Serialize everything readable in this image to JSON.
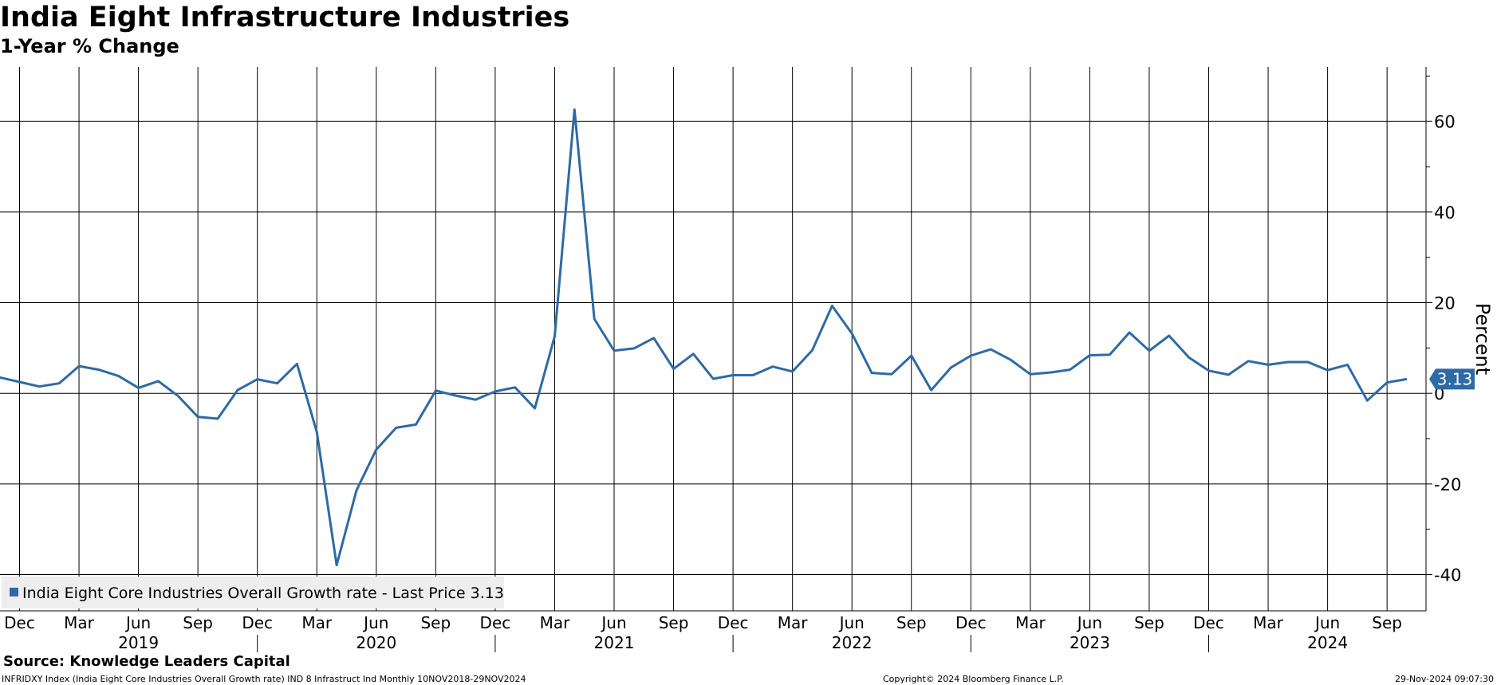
{
  "title": "India Eight Infrastructure Industries",
  "subtitle": "1-Year % Change",
  "source": "Source: Knowledge Leaders Capital",
  "footer": {
    "left": "INFRIDXY Index (India Eight Core Industries Overall Growth rate) IND 8 Infrastruct Ind  Monthly 10NOV2018-29NOV2024",
    "middle": "Copyright© 2024 Bloomberg Finance L.P.",
    "right": "29-Nov-2024 09:07:30"
  },
  "colors": {
    "line": "#2e6aa6",
    "grid": "#000000",
    "legend_bg": "#eeeeee",
    "badge_bg": "#2e6aa6",
    "badge_text": "#ffffff"
  },
  "chart_data": {
    "type": "line",
    "ylabel": "Percent",
    "ylim": [
      -48,
      72
    ],
    "yticks": [
      -40,
      -20,
      0,
      20,
      40,
      60
    ],
    "ytick_labels": [
      "-40",
      "-20",
      "0",
      "20",
      "40",
      "60"
    ],
    "grid": true,
    "legend": {
      "position": "bottom-left",
      "text": "India Eight Core Industries Overall Growth rate - Last Price 3.13"
    },
    "last_value_label": "3.13",
    "x_month_ticks": [
      {
        "date": "2018-12",
        "label": "Dec"
      },
      {
        "date": "2019-03",
        "label": "Mar"
      },
      {
        "date": "2019-06",
        "label": "Jun"
      },
      {
        "date": "2019-09",
        "label": "Sep"
      },
      {
        "date": "2019-12",
        "label": "Dec"
      },
      {
        "date": "2020-03",
        "label": "Mar"
      },
      {
        "date": "2020-06",
        "label": "Jun"
      },
      {
        "date": "2020-09",
        "label": "Sep"
      },
      {
        "date": "2020-12",
        "label": "Dec"
      },
      {
        "date": "2021-03",
        "label": "Mar"
      },
      {
        "date": "2021-06",
        "label": "Jun"
      },
      {
        "date": "2021-09",
        "label": "Sep"
      },
      {
        "date": "2021-12",
        "label": "Dec"
      },
      {
        "date": "2022-03",
        "label": "Mar"
      },
      {
        "date": "2022-06",
        "label": "Jun"
      },
      {
        "date": "2022-09",
        "label": "Sep"
      },
      {
        "date": "2022-12",
        "label": "Dec"
      },
      {
        "date": "2023-03",
        "label": "Mar"
      },
      {
        "date": "2023-06",
        "label": "Jun"
      },
      {
        "date": "2023-09",
        "label": "Sep"
      },
      {
        "date": "2023-12",
        "label": "Dec"
      },
      {
        "date": "2024-03",
        "label": "Mar"
      },
      {
        "date": "2024-06",
        "label": "Jun"
      },
      {
        "date": "2024-09",
        "label": "Sep"
      }
    ],
    "x_year_labels": [
      {
        "label": "2019",
        "center": "2019-06"
      },
      {
        "label": "2020",
        "center": "2020-06"
      },
      {
        "label": "2021",
        "center": "2021-06"
      },
      {
        "label": "2022",
        "center": "2022-06"
      },
      {
        "label": "2023",
        "center": "2023-06"
      },
      {
        "label": "2024",
        "center": "2024-06"
      }
    ],
    "year_separators": [
      "2019-12",
      "2020-12",
      "2021-12",
      "2022-12",
      "2023-12"
    ],
    "series": [
      {
        "name": "India Eight Core Industries Overall Growth rate",
        "x": [
          "2018-11",
          "2018-12",
          "2019-01",
          "2019-02",
          "2019-03",
          "2019-04",
          "2019-05",
          "2019-06",
          "2019-07",
          "2019-08",
          "2019-09",
          "2019-10",
          "2019-11",
          "2019-12",
          "2020-01",
          "2020-02",
          "2020-03",
          "2020-04",
          "2020-05",
          "2020-06",
          "2020-07",
          "2020-08",
          "2020-09",
          "2020-10",
          "2020-11",
          "2020-12",
          "2021-01",
          "2021-02",
          "2021-03",
          "2021-04",
          "2021-05",
          "2021-06",
          "2021-07",
          "2021-08",
          "2021-09",
          "2021-10",
          "2021-11",
          "2021-12",
          "2022-01",
          "2022-02",
          "2022-03",
          "2022-04",
          "2022-05",
          "2022-06",
          "2022-07",
          "2022-08",
          "2022-09",
          "2022-10",
          "2022-11",
          "2022-12",
          "2023-01",
          "2023-02",
          "2023-03",
          "2023-04",
          "2023-05",
          "2023-06",
          "2023-07",
          "2023-08",
          "2023-09",
          "2023-10",
          "2023-11",
          "2023-12",
          "2024-01",
          "2024-02",
          "2024-03",
          "2024-04",
          "2024-05",
          "2024-06",
          "2024-07",
          "2024-08",
          "2024-09",
          "2024-10"
        ],
        "values": [
          3.5,
          2.5,
          1.5,
          2.2,
          6.0,
          5.2,
          3.8,
          1.2,
          2.7,
          -0.6,
          -5.2,
          -5.6,
          0.7,
          3.1,
          2.2,
          6.5,
          -8.6,
          -37.9,
          -21.4,
          -12.4,
          -7.6,
          -6.9,
          0.6,
          -0.5,
          -1.4,
          0.4,
          1.3,
          -3.3,
          12.6,
          62.6,
          16.4,
          9.4,
          9.9,
          12.2,
          5.4,
          8.7,
          3.2,
          4.0,
          4.0,
          5.9,
          4.8,
          9.5,
          19.3,
          13.2,
          4.5,
          4.2,
          8.3,
          0.7,
          5.7,
          8.3,
          9.7,
          7.4,
          4.2,
          4.6,
          5.2,
          8.4,
          8.5,
          13.4,
          9.4,
          12.7,
          7.9,
          5.0,
          4.1,
          7.1,
          6.3,
          6.9,
          6.9,
          5.1,
          6.3,
          -1.6,
          2.4,
          3.13
        ]
      }
    ]
  }
}
